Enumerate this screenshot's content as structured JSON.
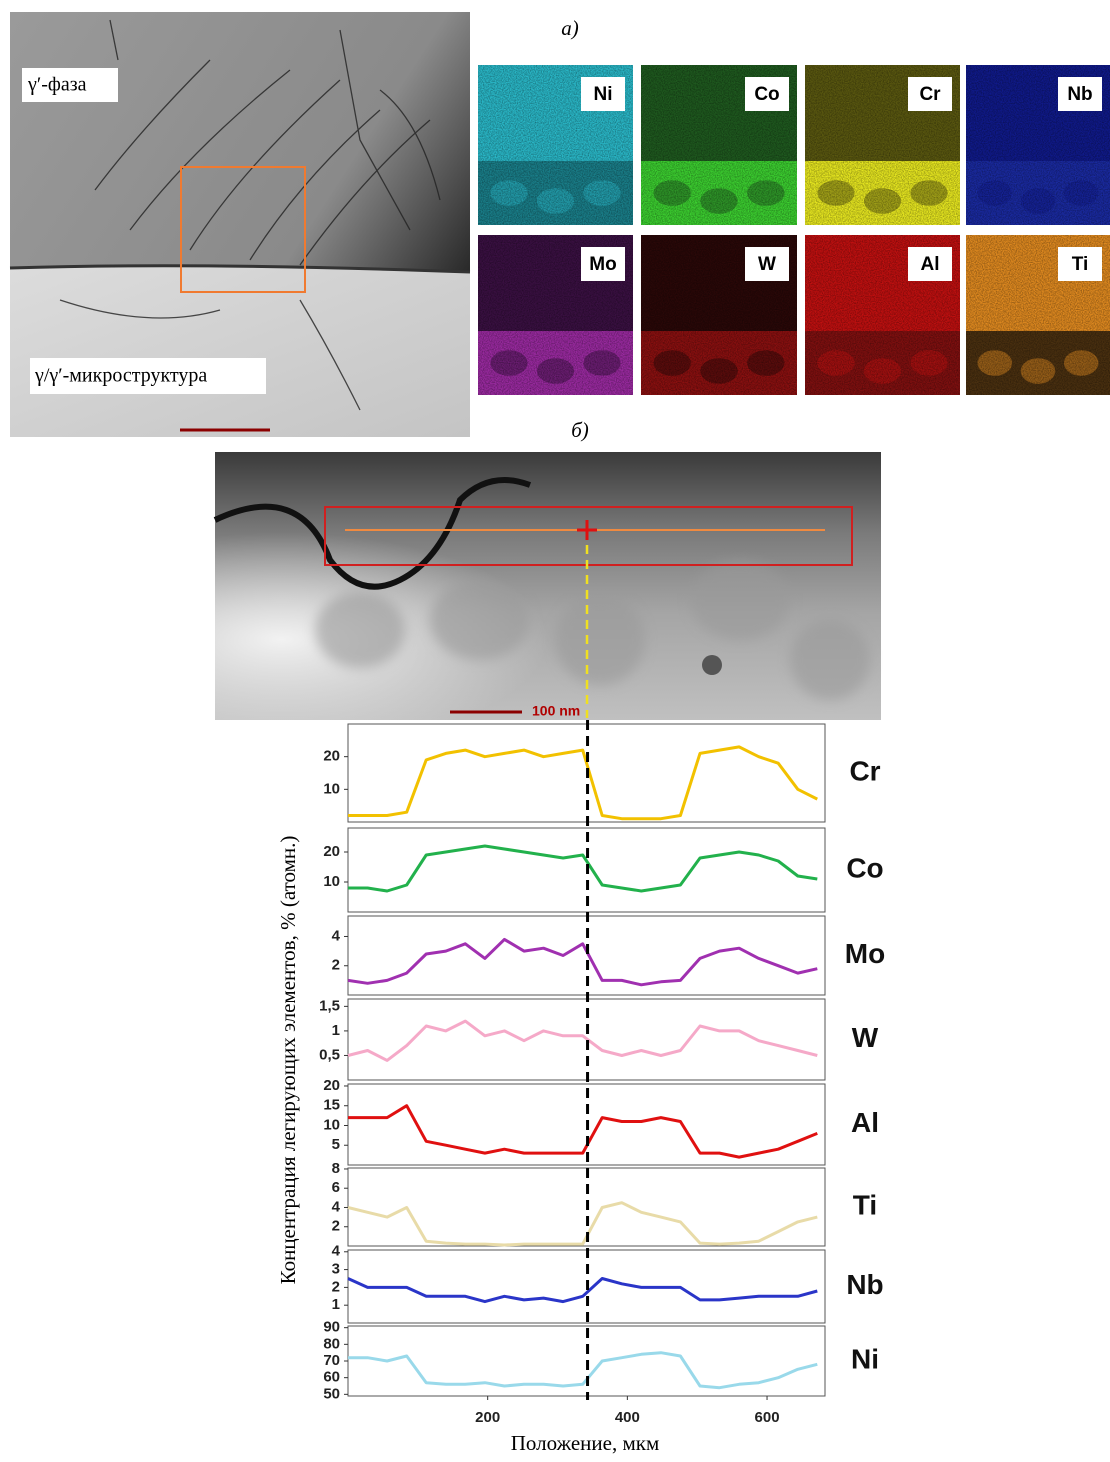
{
  "figure": {
    "panel_a": "а)",
    "panel_b": "б)",
    "tem_labels": [
      "γ′-фаза",
      "γ/γ′-микроструктура"
    ],
    "maps": [
      "Ni",
      "Co",
      "Cr",
      "Nb",
      "Mo",
      "W",
      "Al",
      "Ti"
    ],
    "scale_bar": "100 nm",
    "xlabel": "Положение, мкм",
    "ylabel": "Концентрация легирующих элементов, % (атомн.)",
    "marker_x": 343
  },
  "chart_data": [
    {
      "type": "line",
      "title": "Cr",
      "color": "#f2c100",
      "x": [
        0,
        28,
        56,
        84,
        112,
        140,
        168,
        196,
        224,
        252,
        280,
        308,
        336,
        364,
        392,
        420,
        448,
        476,
        504,
        532,
        560,
        588,
        616,
        644,
        672
      ],
      "xlim": [
        0,
        683
      ],
      "values": [
        2,
        2,
        2,
        3,
        19,
        21,
        22,
        20,
        21,
        22,
        20,
        21,
        22,
        2,
        1,
        1,
        1,
        2,
        21,
        22,
        23,
        20,
        18,
        10,
        7
      ],
      "ylim": [
        0,
        30
      ],
      "yticks": [
        10,
        20
      ]
    },
    {
      "type": "line",
      "title": "Co",
      "color": "#22b14c",
      "x": [
        0,
        28,
        56,
        84,
        112,
        140,
        168,
        196,
        224,
        252,
        280,
        308,
        336,
        364,
        392,
        420,
        448,
        476,
        504,
        532,
        560,
        588,
        616,
        644,
        672
      ],
      "xlim": [
        0,
        683
      ],
      "values": [
        8,
        8,
        7,
        9,
        19,
        20,
        21,
        22,
        21,
        20,
        19,
        18,
        19,
        9,
        8,
        7,
        8,
        9,
        18,
        19,
        20,
        19,
        17,
        12,
        11
      ],
      "ylim": [
        0,
        28
      ],
      "yticks": [
        10,
        20
      ]
    },
    {
      "type": "line",
      "title": "Mo",
      "color": "#a030b0",
      "x": [
        0,
        28,
        56,
        84,
        112,
        140,
        168,
        196,
        224,
        252,
        280,
        308,
        336,
        364,
        392,
        420,
        448,
        476,
        504,
        532,
        560,
        588,
        616,
        644,
        672
      ],
      "xlim": [
        0,
        683
      ],
      "values": [
        1,
        0.8,
        1,
        1.5,
        2.8,
        3,
        3.5,
        2.5,
        3.8,
        3,
        3.2,
        2.7,
        3.5,
        1,
        1,
        0.7,
        0.9,
        1,
        2.5,
        3,
        3.2,
        2.5,
        2,
        1.5,
        1.8
      ],
      "ylim": [
        0,
        5.4
      ],
      "yticks": [
        2,
        4
      ]
    },
    {
      "type": "line",
      "title": "W",
      "color": "#f5a9c8",
      "x": [
        0,
        28,
        56,
        84,
        112,
        140,
        168,
        196,
        224,
        252,
        280,
        308,
        336,
        364,
        392,
        420,
        448,
        476,
        504,
        532,
        560,
        588,
        616,
        644,
        672
      ],
      "xlim": [
        0,
        683
      ],
      "values": [
        0.5,
        0.6,
        0.4,
        0.7,
        1.1,
        1,
        1.2,
        0.9,
        1,
        0.8,
        1,
        0.9,
        0.9,
        0.6,
        0.5,
        0.6,
        0.5,
        0.6,
        1.1,
        1,
        1,
        0.8,
        0.7,
        0.6,
        0.5
      ],
      "ylim": [
        0,
        1.65
      ],
      "yticks": [
        {
          "value": 0.5,
          "label": "0,5"
        },
        1,
        {
          "value": 1.5,
          "label": "1,5"
        }
      ]
    },
    {
      "type": "line",
      "title": "Al",
      "color": "#e01010",
      "x": [
        0,
        28,
        56,
        84,
        112,
        140,
        168,
        196,
        224,
        252,
        280,
        308,
        336,
        364,
        392,
        420,
        448,
        476,
        504,
        532,
        560,
        588,
        616,
        644,
        672
      ],
      "xlim": [
        0,
        683
      ],
      "values": [
        12,
        12,
        12,
        15,
        6,
        5,
        4,
        3,
        4,
        3,
        3,
        3,
        3,
        12,
        11,
        11,
        12,
        11,
        3,
        3,
        2,
        3,
        4,
        6,
        8
      ],
      "ylim": [
        0,
        20.5
      ],
      "yticks": [
        5,
        10,
        15,
        20
      ]
    },
    {
      "type": "line",
      "title": "Ti",
      "color": "#e8dba8",
      "x": [
        0,
        28,
        56,
        84,
        112,
        140,
        168,
        196,
        224,
        252,
        280,
        308,
        336,
        364,
        392,
        420,
        448,
        476,
        504,
        532,
        560,
        588,
        616,
        644,
        672
      ],
      "xlim": [
        0,
        683
      ],
      "values": [
        4,
        3.5,
        3,
        4,
        0.5,
        0.3,
        0.2,
        0.2,
        0.1,
        0.2,
        0.2,
        0.2,
        0.2,
        4,
        4.5,
        3.5,
        3,
        2.5,
        0.3,
        0.2,
        0.3,
        0.5,
        1.5,
        2.5,
        3
      ],
      "ylim": [
        0,
        8.1
      ],
      "yticks": [
        2,
        4,
        6,
        8
      ]
    },
    {
      "type": "line",
      "title": "Nb",
      "color": "#2a35c8",
      "x": [
        0,
        28,
        56,
        84,
        112,
        140,
        168,
        196,
        224,
        252,
        280,
        308,
        336,
        364,
        392,
        420,
        448,
        476,
        504,
        532,
        560,
        588,
        616,
        644,
        672
      ],
      "xlim": [
        0,
        683
      ],
      "values": [
        2.5,
        2,
        2,
        2,
        1.5,
        1.5,
        1.5,
        1.2,
        1.5,
        1.3,
        1.4,
        1.2,
        1.5,
        2.5,
        2.2,
        2,
        2,
        2,
        1.3,
        1.3,
        1.4,
        1.5,
        1.5,
        1.5,
        1.8
      ],
      "ylim": [
        0,
        4.1
      ],
      "yticks": [
        1,
        2,
        3,
        4
      ]
    },
    {
      "type": "line",
      "title": "Ni",
      "color": "#99d9ea",
      "x": [
        0,
        28,
        56,
        84,
        112,
        140,
        168,
        196,
        224,
        252,
        280,
        308,
        336,
        364,
        392,
        420,
        448,
        476,
        504,
        532,
        560,
        588,
        616,
        644,
        672
      ],
      "xlim": [
        0,
        683
      ],
      "values": [
        72,
        72,
        70,
        73,
        57,
        56,
        56,
        57,
        55,
        56,
        56,
        55,
        56,
        70,
        72,
        74,
        75,
        73,
        55,
        54,
        56,
        57,
        60,
        65,
        68
      ],
      "ylim": [
        49,
        91
      ],
      "yticks": [
        50,
        60,
        70,
        80,
        90
      ],
      "xticks": [
        200,
        400,
        600
      ]
    }
  ]
}
